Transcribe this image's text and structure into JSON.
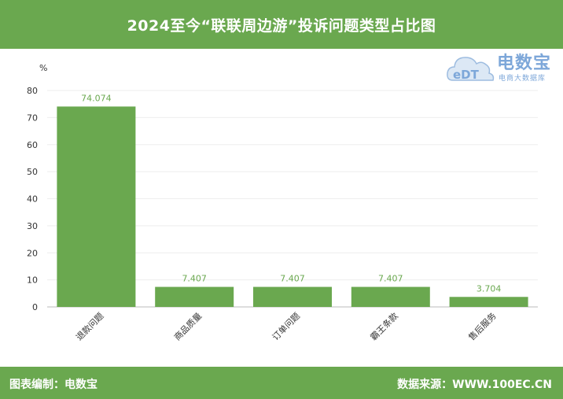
{
  "header": {
    "title": "2024至今“联联周边游”投诉问题类型占比图"
  },
  "footer": {
    "left": "图表编制：电数宝",
    "right": "数据来源：WWW.100EC.CN"
  },
  "logo": {
    "icon_text": "eDT",
    "brand": "电数宝",
    "sub": "电商大数据库"
  },
  "colors": {
    "accent": "#6aa84f",
    "bar": "#6aa84f",
    "label": "#6aa84f",
    "logo": "#7da7d9"
  },
  "chart_data": {
    "type": "bar",
    "title": "",
    "xlabel": "",
    "ylabel": "%",
    "ylim": [
      0,
      80
    ],
    "yticks": [
      0,
      10,
      20,
      30,
      40,
      50,
      60,
      70,
      80
    ],
    "grid": true,
    "categories": [
      "退款问题",
      "商品质量",
      "订单问题",
      "霸王条款",
      "售后服务"
    ],
    "values": [
      74.074,
      7.407,
      7.407,
      7.407,
      3.704
    ],
    "data_labels": [
      "74.074",
      "7.407",
      "7.407",
      "7.407",
      "3.704"
    ]
  }
}
